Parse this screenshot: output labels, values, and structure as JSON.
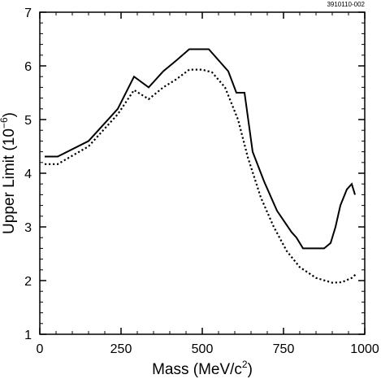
{
  "chart_data": {
    "type": "line",
    "figure_id": "3910110-002",
    "xlabel": {
      "prefix": "Mass (MeV/c",
      "sup": "2",
      "suffix": ")"
    },
    "ylabel": {
      "prefix": "Upper Limit (10",
      "sup": "−6",
      "suffix": ")"
    },
    "xlim": [
      0,
      1000
    ],
    "ylim": [
      1,
      7
    ],
    "x_ticks": [
      0,
      250,
      500,
      750,
      1000
    ],
    "y_ticks": [
      1,
      2,
      3,
      4,
      5,
      6,
      7
    ],
    "x_tick_labels": [
      "0",
      "250",
      "500",
      "750",
      "1000"
    ],
    "y_tick_labels": [
      "1",
      "2",
      "3",
      "4",
      "5",
      "6",
      "7"
    ],
    "grid": false,
    "series": [
      {
        "style": "solid",
        "color": "#000000",
        "points": [
          [
            15,
            4.31
          ],
          [
            55,
            4.31
          ],
          [
            150,
            4.6
          ],
          [
            240,
            5.2
          ],
          [
            290,
            5.8
          ],
          [
            335,
            5.6
          ],
          [
            380,
            5.9
          ],
          [
            420,
            6.1
          ],
          [
            460,
            6.31
          ],
          [
            520,
            6.31
          ],
          [
            580,
            5.9
          ],
          [
            605,
            5.5
          ],
          [
            630,
            5.5
          ],
          [
            655,
            4.4
          ],
          [
            690,
            3.85
          ],
          [
            730,
            3.3
          ],
          [
            775,
            2.9
          ],
          [
            790,
            2.8
          ],
          [
            810,
            2.6
          ],
          [
            860,
            2.6
          ],
          [
            875,
            2.6
          ],
          [
            895,
            2.7
          ],
          [
            910,
            3.0
          ],
          [
            925,
            3.4
          ],
          [
            945,
            3.7
          ],
          [
            960,
            3.8
          ],
          [
            970,
            3.6
          ]
        ]
      },
      {
        "style": "dotted",
        "color": "#000000",
        "points": [
          [
            15,
            4.17
          ],
          [
            55,
            4.17
          ],
          [
            150,
            4.5
          ],
          [
            240,
            5.1
          ],
          [
            290,
            5.55
          ],
          [
            335,
            5.38
          ],
          [
            380,
            5.6
          ],
          [
            420,
            5.75
          ],
          [
            460,
            5.93
          ],
          [
            500,
            5.93
          ],
          [
            530,
            5.88
          ],
          [
            570,
            5.6
          ],
          [
            610,
            5.0
          ],
          [
            640,
            4.3
          ],
          [
            680,
            3.55
          ],
          [
            720,
            3.0
          ],
          [
            760,
            2.55
          ],
          [
            800,
            2.25
          ],
          [
            850,
            2.05
          ],
          [
            900,
            1.96
          ],
          [
            930,
            1.97
          ],
          [
            960,
            2.05
          ],
          [
            975,
            2.13
          ]
        ]
      }
    ]
  }
}
